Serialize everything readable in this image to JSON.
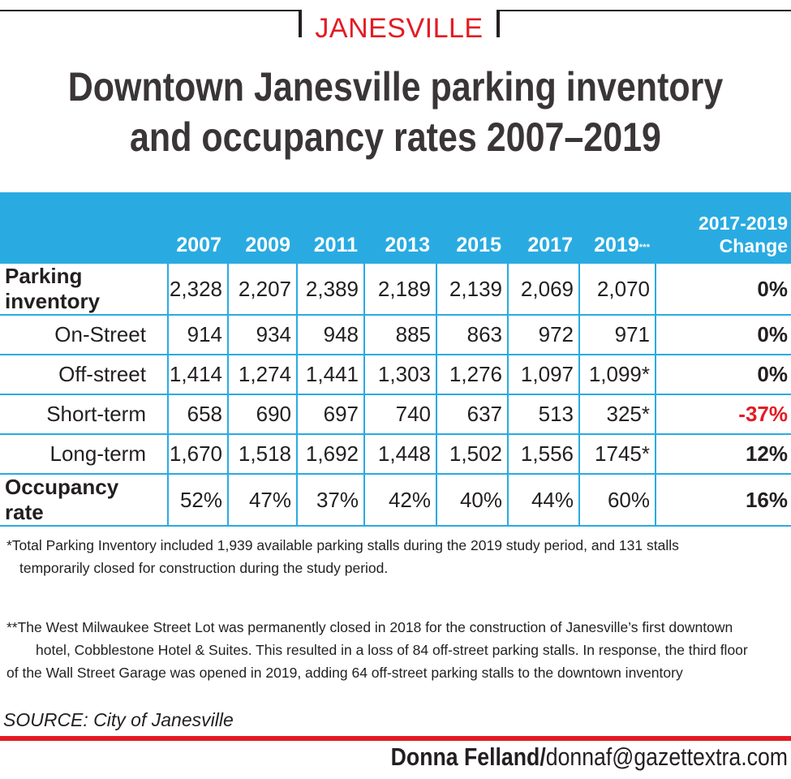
{
  "kicker": "JANESVILLE",
  "title_line1": "Downtown Janesville parking inventory",
  "title_line2": "and occupancy rates 2007–2019",
  "chart_data": {
    "type": "table",
    "title": "Downtown Janesville parking inventory and occupancy rates 2007–2019",
    "columns": [
      "2007",
      "2009",
      "2011",
      "2013",
      "2015",
      "2017",
      "2019"
    ],
    "column_2019_mark": "* * *",
    "change_header_line1": "2017-2019",
    "change_header_line2": "Change",
    "rows": [
      {
        "label": "Parking inventory",
        "bold": true,
        "values": [
          "2,328",
          "2,207",
          "2,389",
          "2,189",
          "2,139",
          "2,069",
          "2,070"
        ],
        "change": "0%"
      },
      {
        "label": "On-Street",
        "bold": false,
        "values": [
          "914",
          "934",
          "948",
          "885",
          "863",
          "972",
          "971"
        ],
        "change": "0%"
      },
      {
        "label": "Off-street",
        "bold": false,
        "values": [
          "1,414",
          "1,274",
          "1,441",
          "1,303",
          "1,276",
          "1,097",
          "1,099*"
        ],
        "change": "0%"
      },
      {
        "label": "Short-term",
        "bold": false,
        "values": [
          "658",
          "690",
          "697",
          "740",
          "637",
          "513",
          "325*"
        ],
        "change": "-37%"
      },
      {
        "label": "Long-term",
        "bold": false,
        "values": [
          "1,670",
          "1,518",
          "1,692",
          "1,448",
          "1,502",
          "1,556",
          "1745*"
        ],
        "change": "12%"
      },
      {
        "label": "Occupancy rate",
        "bold": true,
        "values": [
          "52%",
          "47%",
          "37%",
          "42%",
          "40%",
          "44%",
          "60%"
        ],
        "change": "16%"
      }
    ]
  },
  "note1_line1": "*Total Parking Inventory included 1,939 available parking stalls during the 2019 study period, and  131 stalls",
  "note1_line2": "temporarily closed for construction during the study period.",
  "note2_line1": "**The West Milwaukee Street Lot was permanently closed in 2018 for the construction of Janesville’s first downtown",
  "note2_line2": "hotel, Cobblestone Hotel & Suites. This resulted in a loss of 84 off-street parking stalls. In response, the third floor",
  "note2_line3": "of the Wall Street Garage was opened in 2019, adding 64 off-street parking stalls to the downtown inventory",
  "source": "SOURCE: City of Janesville",
  "credit_name": "Donna Felland/",
  "credit_email": "donnaf@gazettextra.com",
  "colors": {
    "accent_blue": "#29abe2",
    "accent_red": "#e31b23",
    "text": "#231f20"
  }
}
